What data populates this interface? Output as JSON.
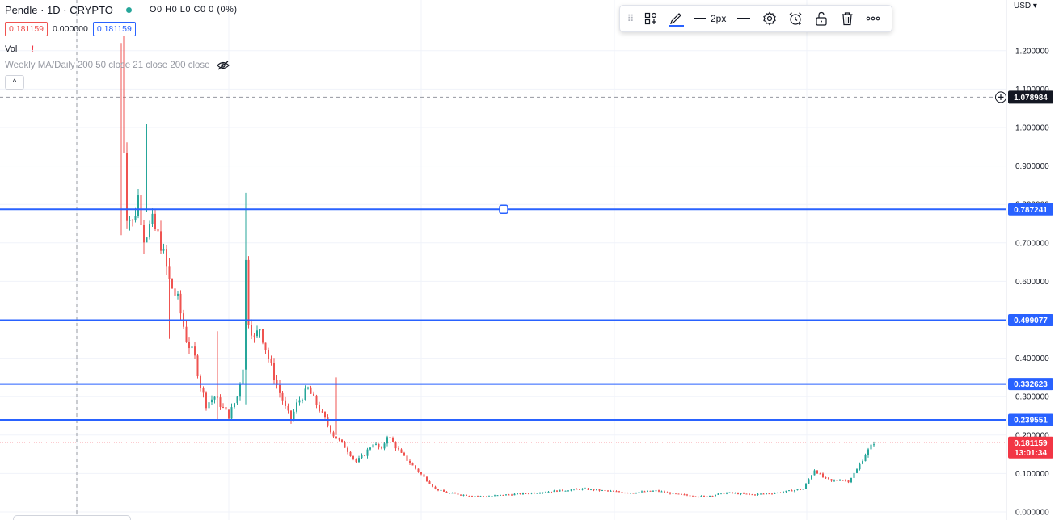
{
  "header": {
    "symbol_title": "Pendle · 1D · CRYPTO",
    "ohlc": "O0 H0 L0 C0 0 (0%)",
    "bid": "0.181159",
    "spread": "0.000000",
    "ask": "0.181159",
    "vol_label": "Vol",
    "vol_warning": "!",
    "indicator_label": "Weekly MA/Daily 200 50 close 21 close 200 close",
    "collapse_glyph": "^"
  },
  "toolbar": {
    "line_width_label": "2px",
    "icons": [
      "grip-icon",
      "templates-icon",
      "pencil-color-icon",
      "line-width-icon",
      "line-style-icon",
      "settings-gear-icon",
      "alert-clock-icon",
      "unlock-icon",
      "trash-icon",
      "more-icon"
    ]
  },
  "price_scale": {
    "currency_label": "USD"
  },
  "colors": {
    "up": "#26a69a",
    "down": "#ef5350",
    "hline": "#2962ff",
    "last_price": "#f23645",
    "crosshair_tag": "#131722"
  },
  "chart_data": {
    "type": "candlestick",
    "title": "Pendle · 1D · CRYPTO",
    "ylim": [
      0,
      1.25
    ],
    "y_ticks": [
      "1.200000",
      "1.100000",
      "1.000000",
      "0.900000",
      "0.800000",
      "0.700000",
      "0.600000",
      "0.500000",
      "0.400000",
      "0.300000",
      "0.200000",
      "0.100000",
      "0.000000"
    ],
    "horizontal_levels": [
      {
        "value": 0.787241,
        "label": "0.787241"
      },
      {
        "value": 0.499077,
        "label": "0.499077"
      },
      {
        "value": 0.332623,
        "label": "0.332623"
      },
      {
        "value": 0.239551,
        "label": "0.239551"
      }
    ],
    "last_price": {
      "value": 0.181159,
      "label": "0.181159",
      "countdown": "13:01:34"
    },
    "crosshair_price": {
      "value": 1.078984,
      "label": "1.078984"
    },
    "grid": true,
    "price_path": [
      [
        0,
        1.25
      ],
      [
        1,
        0.95
      ],
      [
        2,
        0.78
      ],
      [
        4,
        0.75
      ],
      [
        6,
        0.82
      ],
      [
        8,
        0.72
      ],
      [
        11,
        0.75
      ],
      [
        14,
        0.7
      ],
      [
        17,
        0.6
      ],
      [
        20,
        0.55
      ],
      [
        23,
        0.45
      ],
      [
        26,
        0.4
      ],
      [
        28,
        0.33
      ],
      [
        30,
        0.28
      ],
      [
        33,
        0.3
      ],
      [
        35,
        0.28
      ],
      [
        38,
        0.25
      ],
      [
        41,
        0.3
      ],
      [
        43,
        0.38
      ],
      [
        44,
        0.65
      ],
      [
        45,
        0.5
      ],
      [
        47,
        0.45
      ],
      [
        49,
        0.48
      ],
      [
        52,
        0.4
      ],
      [
        55,
        0.33
      ],
      [
        58,
        0.27
      ],
      [
        60,
        0.24
      ],
      [
        62,
        0.28
      ],
      [
        64,
        0.3
      ],
      [
        66,
        0.32
      ],
      [
        69,
        0.28
      ],
      [
        72,
        0.24
      ],
      [
        75,
        0.2
      ],
      [
        79,
        0.17
      ],
      [
        83,
        0.13
      ],
      [
        86,
        0.15
      ],
      [
        89,
        0.18
      ],
      [
        92,
        0.16
      ],
      [
        94,
        0.2
      ],
      [
        96,
        0.18
      ],
      [
        99,
        0.15
      ],
      [
        103,
        0.12
      ],
      [
        107,
        0.09
      ],
      [
        111,
        0.06
      ],
      [
        115,
        0.05
      ],
      [
        120,
        0.045
      ],
      [
        128,
        0.04
      ],
      [
        137,
        0.045
      ],
      [
        146,
        0.05
      ],
      [
        154,
        0.055
      ],
      [
        163,
        0.06
      ],
      [
        171,
        0.055
      ],
      [
        180,
        0.05
      ],
      [
        189,
        0.055
      ],
      [
        197,
        0.045
      ],
      [
        206,
        0.04
      ],
      [
        214,
        0.05
      ],
      [
        223,
        0.045
      ],
      [
        232,
        0.05
      ],
      [
        241,
        0.06
      ],
      [
        245,
        0.11
      ],
      [
        248,
        0.09
      ],
      [
        251,
        0.08
      ],
      [
        254,
        0.085
      ],
      [
        257,
        0.08
      ],
      [
        260,
        0.11
      ],
      [
        263,
        0.15
      ],
      [
        266,
        0.181
      ]
    ],
    "spikes": [
      {
        "x": 0,
        "high": 1.22,
        "low": 0.72
      },
      {
        "x": 9,
        "high": 1.01,
        "low": 0.78
      },
      {
        "x": 44,
        "high": 0.83,
        "low": 0.28
      },
      {
        "x": 34,
        "high": 0.47,
        "low": 0.24
      },
      {
        "x": 17,
        "high": 0.66,
        "low": 0.45
      },
      {
        "x": 76,
        "high": 0.35,
        "low": 0.2
      }
    ]
  }
}
